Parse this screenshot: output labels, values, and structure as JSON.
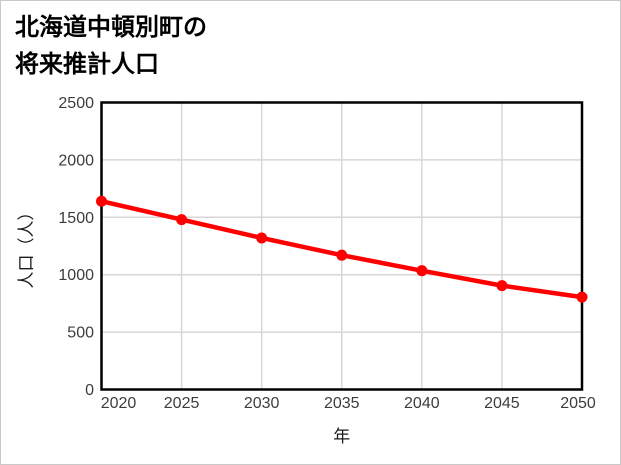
{
  "title": {
    "line1": "北海道中頓別町の",
    "line2": "将来推計人口"
  },
  "chart_data": {
    "type": "line",
    "title": "北海道中頓別町の将来推計人口",
    "x": [
      2020,
      2025,
      2030,
      2035,
      2040,
      2045,
      2050
    ],
    "series": [
      {
        "name": "将来推計人口",
        "values": [
          1640,
          1480,
          1320,
          1170,
          1035,
          905,
          805
        ]
      }
    ],
    "xlabel": "年",
    "ylabel": "人口（人）",
    "xlim": [
      2020,
      2050
    ],
    "ylim": [
      0,
      2500
    ],
    "xticks": [
      2020,
      2025,
      2030,
      2035,
      2040,
      2045,
      2050
    ],
    "yticks": [
      0,
      500,
      1000,
      1500,
      2000,
      2500
    ],
    "grid": true,
    "legend": "none",
    "colors": {
      "line": "#ff0000",
      "grid": "#d7d7d7",
      "frame": "#000000",
      "tick_text": "#3d3d3d"
    }
  }
}
